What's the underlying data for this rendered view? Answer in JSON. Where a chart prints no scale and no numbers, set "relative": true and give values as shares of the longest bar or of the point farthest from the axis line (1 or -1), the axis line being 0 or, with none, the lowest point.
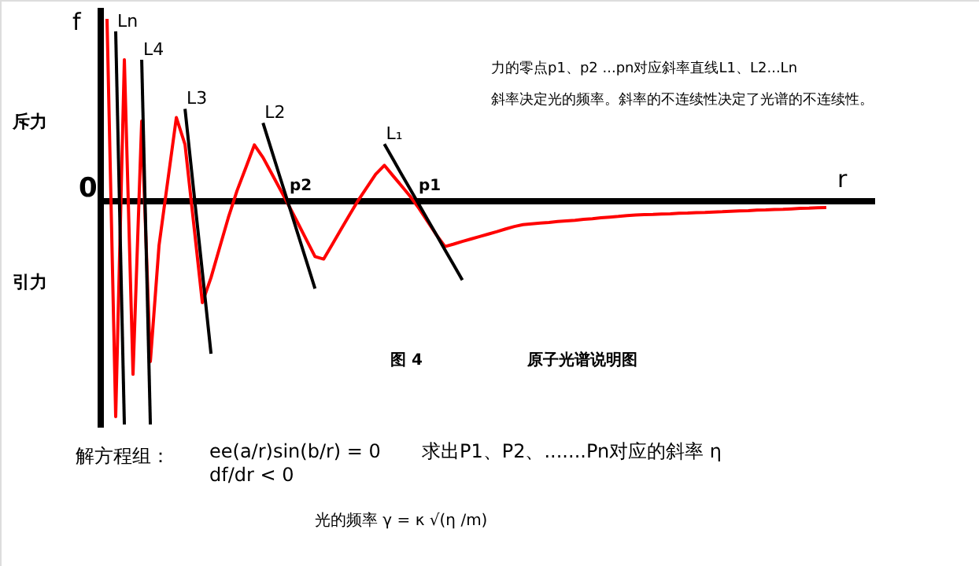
{
  "chart_data": {
    "type": "line",
    "relative": true,
    "title": "原子光谱说明图",
    "xlabel": "r",
    "ylabel": "f",
    "marker": "none",
    "line_style": "solid",
    "categories": [
      null,
      null,
      null,
      null,
      null,
      null,
      null,
      null,
      null,
      null,
      null,
      null,
      null,
      null,
      null,
      null,
      null,
      null,
      null,
      null,
      null,
      null,
      null,
      null,
      null,
      null,
      null,
      null,
      null,
      null,
      null,
      null,
      null,
      null,
      null,
      null,
      null,
      null,
      null,
      null,
      null,
      null,
      null,
      null,
      null,
      null,
      null,
      null,
      null,
      null,
      null,
      null,
      null,
      null,
      null,
      null,
      null,
      null,
      null,
      null,
      null,
      null,
      null,
      null,
      null,
      null,
      null,
      null,
      null,
      null,
      null,
      null,
      null,
      null,
      null,
      null,
      null,
      null,
      null,
      null,
      null,
      null,
      null,
      null
    ],
    "series": [
      {
        "color": "#ff0000",
        "values": [
          0.817,
          -0.965,
          0.634,
          -0.775,
          0.359,
          -0.718,
          -0.198,
          0.089,
          0.375,
          0.254,
          -0.1,
          -0.454,
          -0.342,
          -0.207,
          -0.073,
          0.047,
          0.149,
          0.252,
          0.196,
          0.124,
          0.052,
          -0.021,
          -0.096,
          -0.172,
          -0.248,
          -0.259,
          -0.193,
          -0.126,
          -0.06,
          0.005,
          0.063,
          0.121,
          0.161,
          0.114,
          0.068,
          0.021,
          -0.032,
          -0.091,
          -0.15,
          -0.203,
          -0.192,
          -0.18,
          -0.169,
          -0.158,
          -0.147,
          -0.136,
          -0.124,
          -0.113,
          -0.105,
          -0.101,
          -0.098,
          -0.095,
          -0.091,
          -0.088,
          -0.085,
          -0.081,
          -0.078,
          -0.074,
          -0.071,
          -0.068,
          -0.064,
          -0.062,
          -0.06,
          -0.059,
          -0.057,
          -0.056,
          -0.054,
          -0.053,
          -0.051,
          -0.05,
          -0.048,
          -0.047,
          -0.045,
          -0.043,
          -0.042,
          -0.04,
          -0.039,
          -0.037,
          -0.036,
          -0.034,
          -0.032,
          -0.031,
          -0.029,
          -0.028
        ]
      },
      {
        "name": "Ln",
        "color": "#000000",
        "values": [
          null,
          0.761,
          -1,
          null,
          null,
          null,
          null,
          null,
          null,
          null,
          null,
          null,
          null,
          null,
          null,
          null,
          null,
          null,
          null,
          null,
          null,
          null,
          null,
          null,
          null,
          null,
          null,
          null,
          null,
          null,
          null,
          null,
          null,
          null,
          null,
          null,
          null,
          null,
          null,
          null,
          null,
          null,
          null,
          null,
          null,
          null,
          null,
          null,
          null,
          null,
          null,
          null,
          null,
          null,
          null,
          null,
          null,
          null,
          null,
          null,
          null,
          null,
          null,
          null,
          null,
          null,
          null,
          null,
          null,
          null,
          null,
          null,
          null,
          null,
          null,
          null,
          null,
          null,
          null,
          null,
          null,
          null,
          null,
          null
        ]
      },
      {
        "name": "L4",
        "color": "#000000",
        "values": [
          null,
          null,
          null,
          null,
          0.634,
          -1,
          null,
          null,
          null,
          null,
          null,
          null,
          null,
          null,
          null,
          null,
          null,
          null,
          null,
          null,
          null,
          null,
          null,
          null,
          null,
          null,
          null,
          null,
          null,
          null,
          null,
          null,
          null,
          null,
          null,
          null,
          null,
          null,
          null,
          null,
          null,
          null,
          null,
          null,
          null,
          null,
          null,
          null,
          null,
          null,
          null,
          null,
          null,
          null,
          null,
          null,
          null,
          null,
          null,
          null,
          null,
          null,
          null,
          null,
          null,
          null,
          null,
          null,
          null,
          null,
          null,
          null,
          null,
          null,
          null,
          null,
          null,
          null,
          null,
          null,
          null,
          null,
          null,
          null
        ]
      },
      {
        "name": "L3",
        "color": "#000000",
        "values": [
          null,
          null,
          null,
          null,
          null,
          null,
          null,
          null,
          null,
          0.414,
          0.048,
          -0.317,
          -0.683,
          null,
          null,
          null,
          null,
          null,
          null,
          null,
          null,
          null,
          null,
          null,
          null,
          null,
          null,
          null,
          null,
          null,
          null,
          null,
          null,
          null,
          null,
          null,
          null,
          null,
          null,
          null,
          null,
          null,
          null,
          null,
          null,
          null,
          null,
          null,
          null,
          null,
          null,
          null,
          null,
          null,
          null,
          null,
          null,
          null,
          null,
          null,
          null,
          null,
          null,
          null,
          null,
          null,
          null,
          null,
          null,
          null,
          null,
          null,
          null,
          null,
          null,
          null,
          null,
          null,
          null,
          null,
          null,
          null,
          null,
          null
        ]
      },
      {
        "name": "L2",
        "color": "#000000",
        "values": [
          null,
          null,
          null,
          null,
          null,
          null,
          null,
          null,
          null,
          null,
          null,
          null,
          null,
          null,
          null,
          null,
          null,
          null,
          0.351,
          0.227,
          0.103,
          -0.02,
          -0.144,
          -0.267,
          -0.391,
          null,
          null,
          null,
          null,
          null,
          null,
          null,
          null,
          null,
          null,
          null,
          null,
          null,
          null,
          null,
          null,
          null,
          null,
          null,
          null,
          null,
          null,
          null,
          null,
          null,
          null,
          null,
          null,
          null,
          null,
          null,
          null,
          null,
          null,
          null,
          null,
          null,
          null,
          null,
          null,
          null,
          null,
          null,
          null,
          null,
          null,
          null,
          null,
          null,
          null,
          null,
          null,
          null,
          null,
          null,
          null,
          null,
          null,
          null
        ]
      },
      {
        "name": "L₁",
        "color": "#000000",
        "values": [
          null,
          null,
          null,
          null,
          null,
          null,
          null,
          null,
          null,
          null,
          null,
          null,
          null,
          null,
          null,
          null,
          null,
          null,
          null,
          null,
          null,
          null,
          null,
          null,
          null,
          null,
          null,
          null,
          null,
          null,
          null,
          null,
          0.256,
          0.188,
          0.12,
          0.053,
          -0.015,
          -0.083,
          -0.15,
          -0.218,
          -0.285,
          -0.353,
          null,
          null,
          null,
          null,
          null,
          null,
          null,
          null,
          null,
          null,
          null,
          null,
          null,
          null,
          null,
          null,
          null,
          null,
          null,
          null,
          null,
          null,
          null,
          null,
          null,
          null,
          null,
          null,
          null,
          null,
          null,
          null,
          null,
          null,
          null,
          null,
          null,
          null,
          null,
          null,
          null,
          null
        ]
      }
    ],
    "annotations": [
      "p2",
      "p1",
      "0",
      "斥力",
      "引力",
      "力的零点p1、p2 ...pn对应斜率直线L1、L2...Ln",
      "斜率决定光的频率。斜率的不连续性决定了光谱的不连续性。",
      "图 4",
      "解方程组：",
      "ee(a/r)sin(b/r) = 0",
      "df/dr < 0",
      "求出P1、P2、.......Pn对应的斜率 η",
      "光的频率 γ = κ √(η /m)"
    ]
  }
}
